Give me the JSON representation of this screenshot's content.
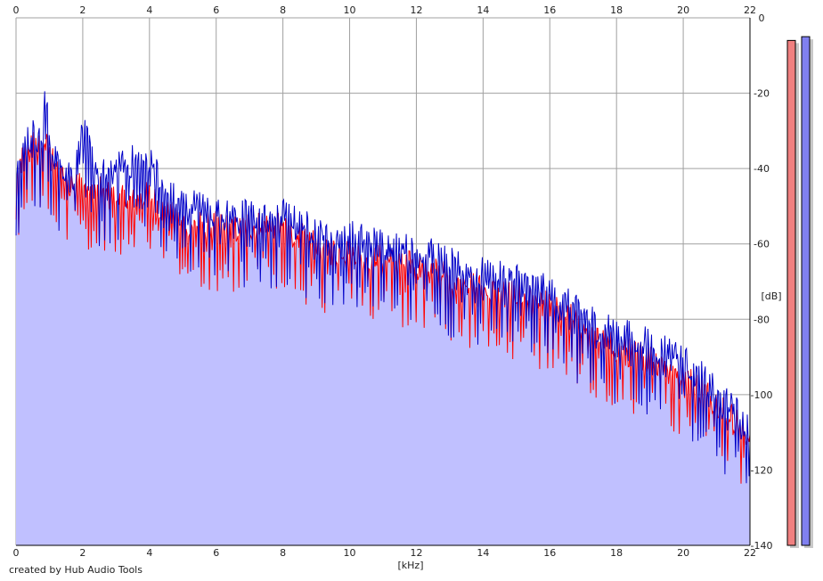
{
  "credit": "created by Hub Audio Tools",
  "colors": {
    "fill": "#c0c0ff",
    "left_channel": "#ff0000",
    "right_channel": "#0000c8",
    "grid": "#a0a0a0",
    "meter_left": "#f08080",
    "meter_right": "#8080f0"
  },
  "chart_data": {
    "type": "line",
    "xlabel": "[kHz]",
    "ylabel": "[dB]",
    "xlim": [
      0,
      22
    ],
    "ylim": [
      -140,
      0
    ],
    "x_ticks": [
      0,
      2,
      4,
      6,
      8,
      10,
      12,
      14,
      16,
      18,
      20,
      22
    ],
    "y_ticks": [
      0,
      -20,
      -40,
      -60,
      -80,
      -100,
      -120,
      -140
    ],
    "grid": true,
    "x_axis_top": true,
    "series": [
      {
        "channel": "left",
        "x": [
          0,
          0.25,
          0.5,
          0.75,
          0.9,
          1,
          1.25,
          1.5,
          1.75,
          2,
          2.5,
          3,
          3.5,
          4,
          4.5,
          5,
          5.5,
          6,
          6.5,
          7,
          7.5,
          8,
          8.5,
          9,
          9.5,
          10,
          10.5,
          11,
          11.5,
          12,
          12.5,
          13,
          13.5,
          14,
          14.5,
          15,
          15.5,
          16,
          16.5,
          17,
          17.5,
          18,
          18.5,
          19,
          19.5,
          20,
          20.5,
          21,
          21.5,
          22
        ],
        "values": [
          -42,
          -36,
          -33,
          -35,
          -29,
          -36,
          -40,
          -42,
          -44,
          -44,
          -46,
          -48,
          -49,
          -47,
          -52,
          -54,
          -55,
          -55,
          -56,
          -55,
          -55,
          -54,
          -58,
          -60,
          -62,
          -62,
          -63,
          -64,
          -65,
          -66,
          -67,
          -69,
          -70,
          -72,
          -73,
          -73,
          -75,
          -77,
          -79,
          -82,
          -85,
          -88,
          -89,
          -90,
          -92,
          -95,
          -98,
          -102,
          -106,
          -112
        ]
      },
      {
        "channel": "right",
        "x": [
          0,
          0.25,
          0.5,
          0.75,
          0.9,
          1,
          1.25,
          1.5,
          1.75,
          2,
          2.5,
          3,
          3.5,
          4,
          4.5,
          5,
          5.5,
          6,
          6.5,
          7,
          7.5,
          8,
          8.5,
          9,
          9.5,
          10,
          10.5,
          11,
          11.5,
          12,
          12.5,
          13,
          13.5,
          14,
          14.5,
          15,
          15.5,
          16,
          16.5,
          17,
          17.5,
          18,
          18.5,
          19,
          19.5,
          20,
          20.5,
          21,
          21.5,
          22
        ],
        "values": [
          -40,
          -33,
          -31,
          -34,
          -17,
          -33,
          -38,
          -40,
          -42,
          -30,
          -42,
          -40,
          -38,
          -37,
          -47,
          -49,
          -50,
          -52,
          -53,
          -52,
          -53,
          -52,
          -55,
          -56,
          -58,
          -58,
          -59,
          -60,
          -61,
          -62,
          -63,
          -65,
          -67,
          -68,
          -69,
          -69,
          -71,
          -73,
          -76,
          -78,
          -82,
          -83,
          -85,
          -86,
          -88,
          -91,
          -95,
          -100,
          -104,
          -109
        ]
      }
    ],
    "level_meters": [
      {
        "channel": "left",
        "peak_db": -6
      },
      {
        "channel": "right",
        "peak_db": -5
      }
    ]
  }
}
